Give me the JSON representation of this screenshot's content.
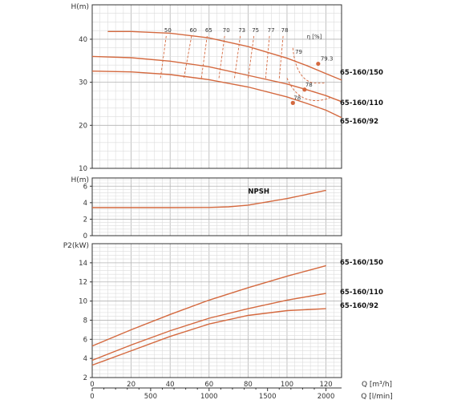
{
  "chart_data": [
    {
      "id": "head",
      "type": "line",
      "ylabel": "H(m)",
      "ylim": [
        10,
        48
      ],
      "yticks": [
        10,
        20,
        30,
        40
      ],
      "xlim": [
        0,
        128
      ],
      "series": [
        {
          "name": "65-160/150",
          "x": [
            8,
            20,
            40,
            60,
            80,
            100,
            110,
            120,
            128
          ],
          "y": [
            41.8,
            41.8,
            41.4,
            40.3,
            38.3,
            35.6,
            33.9,
            32.0,
            30.5
          ]
        },
        {
          "name": "65-160/110",
          "x": [
            0,
            20,
            40,
            60,
            80,
            100,
            110,
            120,
            128
          ],
          "y": [
            36.0,
            35.7,
            34.9,
            33.6,
            31.6,
            29.6,
            28.3,
            26.9,
            25.5
          ]
        },
        {
          "name": "65-160/92",
          "x": [
            0,
            20,
            40,
            60,
            80,
            100,
            110,
            120,
            128
          ],
          "y": [
            32.6,
            32.4,
            31.8,
            30.6,
            28.9,
            26.6,
            25.1,
            23.5,
            21.8
          ]
        }
      ],
      "best_points": [
        {
          "x": 116,
          "y": 34.3,
          "label": "79.3"
        },
        {
          "x": 109,
          "y": 28.3,
          "label": "78"
        },
        {
          "x": 103,
          "y": 25.2,
          "label": "78"
        }
      ],
      "efficiency": {
        "label": "η [%]",
        "lines": [
          {
            "label": "50",
            "x_top": 38,
            "x_bot": 35
          },
          {
            "label": "60",
            "x_top": 51,
            "x_bot": 47
          },
          {
            "label": "65",
            "x_top": 59,
            "x_bot": 56
          },
          {
            "label": "70",
            "x_top": 68,
            "x_bot": 65
          },
          {
            "label": "73",
            "x_top": 76,
            "x_bot": 73
          },
          {
            "label": "75",
            "x_top": 83,
            "x_bot": 80
          },
          {
            "label": "77",
            "x_top": 91,
            "x_bot": 89
          },
          {
            "label": "78",
            "x_top": 98,
            "x_bot": 96
          }
        ],
        "label_79": "79"
      }
    },
    {
      "id": "npsh",
      "type": "line",
      "ylabel": "H(m)",
      "ylim": [
        0,
        7
      ],
      "yticks": [
        0,
        2,
        4,
        6
      ],
      "xlim": [
        0,
        128
      ],
      "series": [
        {
          "name": "NPSH",
          "x": [
            0,
            20,
            40,
            60,
            70,
            80,
            90,
            100,
            110,
            120
          ],
          "y": [
            3.4,
            3.4,
            3.4,
            3.42,
            3.5,
            3.7,
            4.1,
            4.5,
            5.0,
            5.5
          ]
        }
      ]
    },
    {
      "id": "power",
      "type": "line",
      "ylabel": "P2(kW)",
      "ylim": [
        2,
        16
      ],
      "yticks": [
        2,
        4,
        6,
        8,
        10,
        12,
        14
      ],
      "xlim": [
        0,
        128
      ],
      "series": [
        {
          "name": "65-160/150",
          "x": [
            0,
            20,
            40,
            60,
            80,
            100,
            120
          ],
          "y": [
            5.3,
            7.0,
            8.6,
            10.1,
            11.4,
            12.6,
            13.7
          ]
        },
        {
          "name": "65-160/110",
          "x": [
            0,
            20,
            40,
            60,
            80,
            100,
            120
          ],
          "y": [
            3.8,
            5.4,
            6.9,
            8.2,
            9.2,
            10.1,
            10.8
          ]
        },
        {
          "name": "65-160/92",
          "x": [
            0,
            20,
            40,
            60,
            80,
            100,
            120
          ],
          "y": [
            3.3,
            4.8,
            6.3,
            7.6,
            8.5,
            9.0,
            9.2
          ]
        }
      ],
      "xticks_m3h": [
        0,
        20,
        40,
        60,
        80,
        100,
        120
      ],
      "xlabel_m3h": "Q [m³/h]",
      "xticks_lmin": [
        0,
        500,
        1000,
        1500,
        2000
      ],
      "xlabel_lmin": "Q [l/min]"
    }
  ],
  "colors": {
    "curve": "#d4693f",
    "dashed": "#d4693f",
    "dot": "#d4693f"
  }
}
